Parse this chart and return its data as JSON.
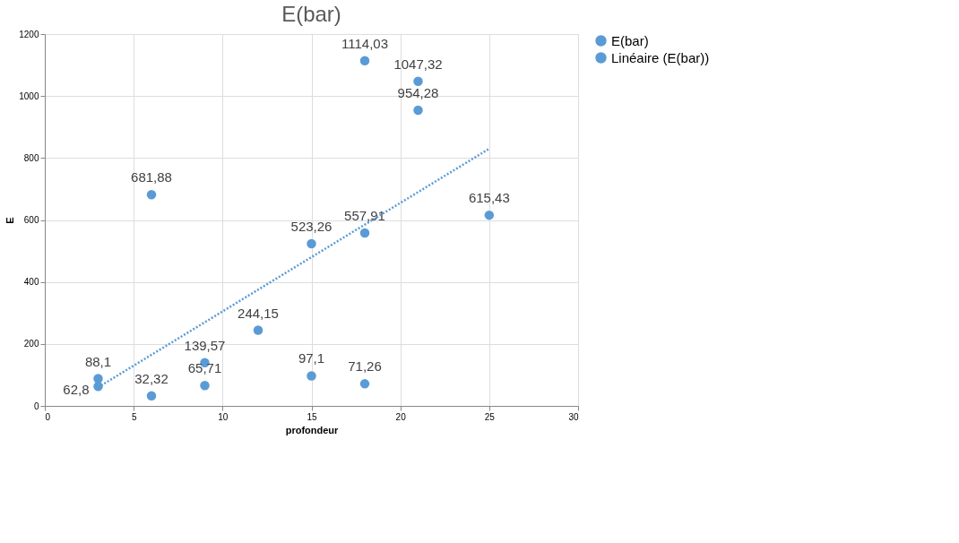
{
  "chart_data": {
    "type": "scatter",
    "title": "E(bar)",
    "xlabel": "profondeur",
    "ylabel": "E",
    "xlim": [
      0,
      30
    ],
    "xticks": [
      0,
      5,
      10,
      15,
      20,
      25,
      30
    ],
    "ylim": [
      0,
      1200
    ],
    "yticks": [
      0,
      200,
      400,
      600,
      800,
      1000,
      1200
    ],
    "grid": true,
    "legend": "right",
    "series": [
      {
        "name": "E(bar)",
        "marker": "circle",
        "color": "#5b9bd5",
        "x": [
          3,
          3,
          6,
          6,
          9,
          9,
          12,
          15,
          15,
          18,
          18,
          18,
          21,
          21,
          25
        ],
        "values": [
          88.1,
          62.8,
          32.32,
          681.88,
          139.57,
          65.71,
          244.15,
          523.26,
          97.1,
          1114.03,
          557.91,
          71.26,
          1047.32,
          954.28,
          615.43
        ],
        "value_labels": [
          "88,1",
          "62,8",
          "32,32",
          "681,88",
          "139,57",
          "65,71",
          "244,15",
          "523,26",
          "97,1",
          "1114,03",
          "557,91",
          "71,26",
          "1047,32",
          "954,28",
          "615,43"
        ]
      },
      {
        "name": "Linéaire (E(bar))",
        "type": "line",
        "line_style": "dotted",
        "color": "#5b9bd5",
        "x": [
          3,
          25
        ],
        "values": [
          60,
          830
        ]
      }
    ]
  }
}
